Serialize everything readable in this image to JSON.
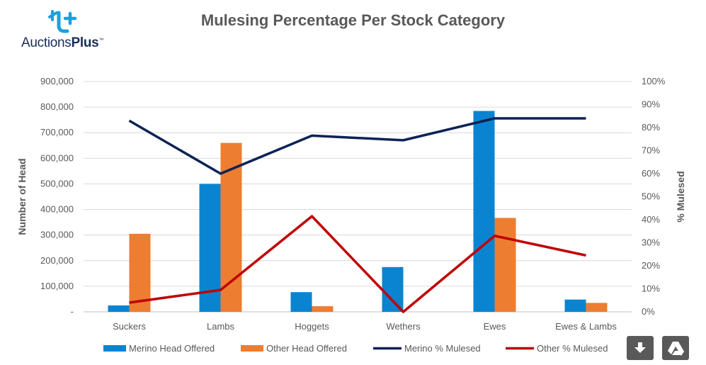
{
  "logo": {
    "brand_regular": "Auctions",
    "brand_bold": "Plus",
    "tm": "™"
  },
  "title": "Mulesing Percentage Per Stock Category",
  "chart_data": {
    "type": "bar",
    "title": "Mulesing Percentage Per Stock Category",
    "categories": [
      "Suckers",
      "Lambs",
      "Hoggets",
      "Wethers",
      "Ewes",
      "Ewes & Lambs"
    ],
    "ylabel": "Number of Head",
    "y2label": "% Mulesed",
    "ylim": [
      0,
      900000
    ],
    "y2lim": [
      0,
      100
    ],
    "y_ticks": [
      "-",
      "100,000",
      "200,000",
      "300,000",
      "400,000",
      "500,000",
      "600,000",
      "700,000",
      "800,000",
      "900,000"
    ],
    "y2_ticks": [
      "0%",
      "10%",
      "20%",
      "30%",
      "40%",
      "50%",
      "60%",
      "70%",
      "80%",
      "90%",
      "100%"
    ],
    "grid": true,
    "legend_position": "bottom",
    "series": [
      {
        "name": "Merino Head Offered",
        "kind": "bar",
        "axis": "left",
        "color": "#0a84d0",
        "values": [
          25000,
          500000,
          77000,
          175000,
          785000,
          48000
        ]
      },
      {
        "name": "Other Head Offered",
        "kind": "bar",
        "axis": "left",
        "color": "#ed7d31",
        "values": [
          305000,
          660000,
          22000,
          0,
          367000,
          35000
        ]
      },
      {
        "name": "Merino % Mulesed",
        "kind": "line",
        "axis": "right",
        "color": "#0d2356",
        "values": [
          83,
          60,
          76.5,
          74.5,
          84,
          84
        ]
      },
      {
        "name": "Other % Mulesed",
        "kind": "line",
        "axis": "right",
        "color": "#c00000",
        "values": [
          4,
          9.5,
          41.5,
          0,
          33,
          24.5
        ]
      }
    ]
  },
  "tools": {
    "download": "download-icon",
    "drive": "google-drive-icon"
  }
}
